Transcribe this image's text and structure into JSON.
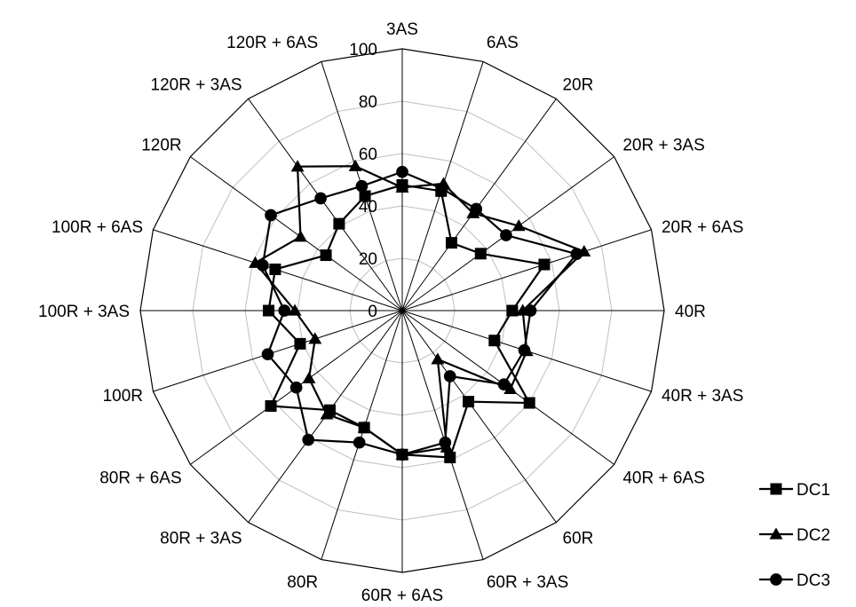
{
  "chart_data": {
    "type": "radar",
    "categories": [
      "3AS",
      "6AS",
      "20R",
      "20R + 3AS",
      "20R + 6AS",
      "40R",
      "40R + 3AS",
      "40R + 6AS",
      "60R",
      "60R + 3AS",
      "60R + 6AS",
      "80R",
      "80R + 3AS",
      "80R + 6AS",
      "100R",
      "100R + 3AS",
      "100R + 6AS",
      "120R",
      "120R + 3AS",
      "120R + 6AS"
    ],
    "radial_ticks": [
      0,
      20,
      40,
      60,
      80,
      100
    ],
    "rlim": [
      0,
      100
    ],
    "grid": true,
    "legend_position": "bottom-right",
    "series": [
      {
        "name": "DC1",
        "marker": "square",
        "values": [
          48,
          48,
          32,
          37,
          57,
          42,
          37,
          60,
          43,
          59,
          55,
          47,
          47,
          62,
          41,
          51,
          51,
          36,
          41,
          46
        ]
      },
      {
        "name": "DC2",
        "marker": "triangle",
        "values": [
          47,
          51,
          46,
          55,
          73,
          46,
          50,
          51,
          23,
          55,
          55,
          47,
          49,
          44,
          35,
          41,
          59,
          48,
          68,
          58
        ]
      },
      {
        "name": "DC3",
        "marker": "circle",
        "values": [
          53,
          49,
          48,
          49,
          70,
          49,
          49,
          48,
          31,
          53,
          55,
          53,
          61,
          50,
          54,
          45,
          56,
          62,
          53,
          50
        ]
      }
    ]
  }
}
